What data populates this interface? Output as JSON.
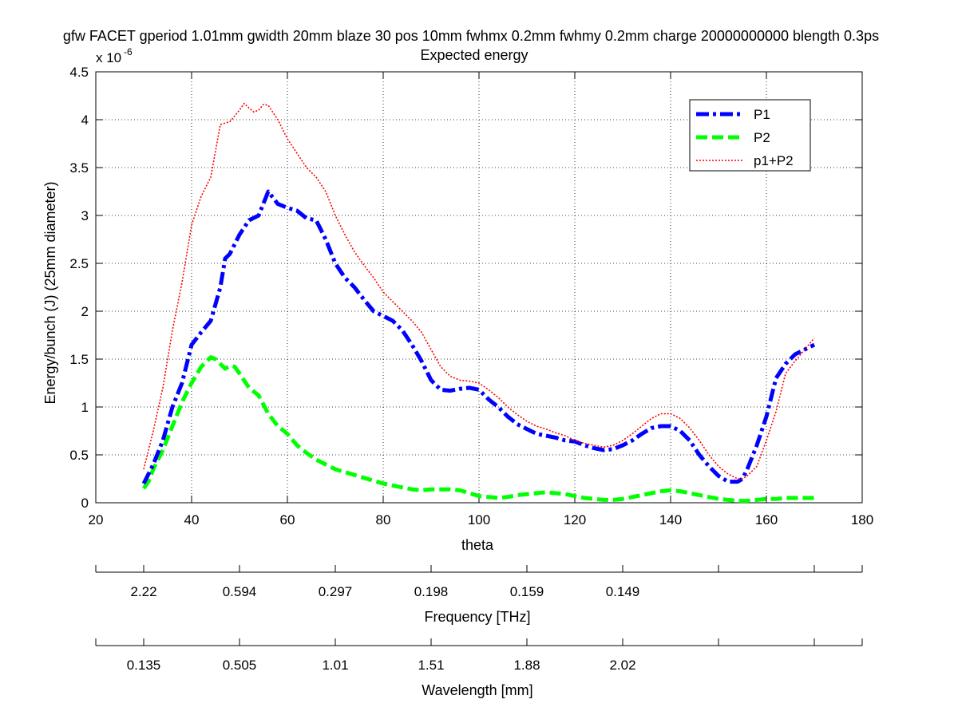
{
  "chart_data": {
    "type": "line",
    "title": "gfw FACET gperiod 1.01mm gwidth 20mm blaze 30 pos 10mm fwhmx 0.2mm fwhmy 0.2mm charge 20000000000 blength 0.3ps",
    "subtitle": "Expected energy",
    "xlabel": "theta",
    "ylabel": "Energy/bunch (J) (25mm diameter)",
    "y_exponent_base": "x 10",
    "y_exponent_power": "-6",
    "xlim": [
      20,
      180
    ],
    "ylim": [
      0,
      4.5
    ],
    "x_ticks": [
      "20",
      "40",
      "60",
      "80",
      "100",
      "120",
      "140",
      "160",
      "180"
    ],
    "y_ticks": [
      "0",
      "0.5",
      "1",
      "1.5",
      "2",
      "2.5",
      "3",
      "3.5",
      "4",
      "4.5"
    ],
    "grid": true,
    "legend_position": "top-right",
    "colors": {
      "P1": "#0000ff",
      "P2": "#00ff00",
      "p1+P2": "#ff0000"
    },
    "series": [
      {
        "name": "P1",
        "style": "dash-dot",
        "x": [
          30,
          32,
          34,
          36,
          38,
          40,
          42,
          44,
          46,
          47,
          48,
          50,
          52,
          54,
          56,
          58,
          60,
          62,
          64,
          66,
          68,
          70,
          72,
          74,
          76,
          78,
          80,
          82,
          84,
          86,
          88,
          90,
          92,
          94,
          96,
          98,
          100,
          102,
          104,
          106,
          108,
          110,
          112,
          114,
          116,
          118,
          120,
          122,
          124,
          126,
          128,
          130,
          132,
          134,
          136,
          138,
          140,
          142,
          144,
          146,
          148,
          150,
          152,
          154,
          155,
          156,
          158,
          160,
          162,
          164,
          166,
          168,
          170
        ],
        "values": [
          0.2,
          0.4,
          0.65,
          1.0,
          1.25,
          1.65,
          1.78,
          1.9,
          2.25,
          2.55,
          2.6,
          2.8,
          2.95,
          3.0,
          3.25,
          3.12,
          3.08,
          3.05,
          2.97,
          2.95,
          2.75,
          2.5,
          2.35,
          2.25,
          2.12,
          2.0,
          1.95,
          1.9,
          1.8,
          1.65,
          1.48,
          1.28,
          1.18,
          1.17,
          1.19,
          1.2,
          1.18,
          1.08,
          1.0,
          0.9,
          0.82,
          0.77,
          0.72,
          0.7,
          0.68,
          0.65,
          0.64,
          0.6,
          0.57,
          0.55,
          0.56,
          0.6,
          0.65,
          0.72,
          0.78,
          0.8,
          0.8,
          0.75,
          0.65,
          0.5,
          0.38,
          0.28,
          0.22,
          0.22,
          0.25,
          0.35,
          0.6,
          0.9,
          1.3,
          1.45,
          1.55,
          1.6,
          1.65
        ]
      },
      {
        "name": "P2",
        "style": "dashed",
        "x": [
          30,
          31,
          32,
          34,
          36,
          38,
          40,
          42,
          44,
          45,
          46,
          47,
          48,
          49,
          50,
          52,
          54,
          56,
          58,
          60,
          62,
          64,
          66,
          68,
          70,
          72,
          74,
          76,
          78,
          80,
          82,
          84,
          86,
          88,
          90,
          92,
          94,
          96,
          98,
          100,
          102,
          104,
          106,
          108,
          110,
          112,
          114,
          116,
          118,
          120,
          122,
          124,
          126,
          128,
          130,
          132,
          134,
          136,
          138,
          140,
          142,
          144,
          146,
          148,
          150,
          152,
          154,
          156,
          158,
          160,
          162,
          164,
          166,
          168,
          170
        ],
        "values": [
          0.15,
          0.22,
          0.35,
          0.55,
          0.8,
          1.05,
          1.25,
          1.42,
          1.52,
          1.5,
          1.45,
          1.4,
          1.43,
          1.42,
          1.35,
          1.2,
          1.12,
          0.93,
          0.8,
          0.72,
          0.6,
          0.52,
          0.45,
          0.4,
          0.35,
          0.32,
          0.29,
          0.26,
          0.23,
          0.2,
          0.18,
          0.16,
          0.14,
          0.13,
          0.14,
          0.14,
          0.14,
          0.13,
          0.1,
          0.07,
          0.06,
          0.05,
          0.06,
          0.08,
          0.09,
          0.1,
          0.11,
          0.1,
          0.09,
          0.07,
          0.05,
          0.04,
          0.03,
          0.03,
          0.04,
          0.06,
          0.08,
          0.1,
          0.12,
          0.13,
          0.12,
          0.1,
          0.08,
          0.06,
          0.04,
          0.03,
          0.02,
          0.02,
          0.03,
          0.04,
          0.04,
          0.05,
          0.05,
          0.05,
          0.05
        ]
      },
      {
        "name": "p1+P2",
        "style": "dotted",
        "x": [
          30,
          32,
          34,
          36,
          38,
          40,
          42,
          44,
          46,
          48,
          50,
          51,
          52,
          53,
          54,
          55,
          56,
          58,
          60,
          62,
          64,
          66,
          68,
          70,
          72,
          74,
          76,
          78,
          80,
          82,
          84,
          86,
          88,
          90,
          92,
          94,
          96,
          98,
          100,
          102,
          104,
          106,
          108,
          110,
          112,
          114,
          116,
          118,
          120,
          122,
          124,
          126,
          128,
          130,
          132,
          134,
          136,
          138,
          140,
          142,
          144,
          146,
          148,
          150,
          152,
          154,
          155,
          156,
          158,
          160,
          162,
          164,
          166,
          168,
          170
        ],
        "values": [
          0.35,
          0.75,
          1.2,
          1.8,
          2.3,
          2.9,
          3.2,
          3.4,
          3.95,
          3.98,
          4.1,
          4.17,
          4.12,
          4.08,
          4.1,
          4.16,
          4.15,
          4.0,
          3.8,
          3.65,
          3.5,
          3.4,
          3.25,
          3.0,
          2.8,
          2.62,
          2.48,
          2.35,
          2.2,
          2.1,
          2.0,
          1.9,
          1.78,
          1.6,
          1.42,
          1.32,
          1.28,
          1.27,
          1.25,
          1.18,
          1.1,
          1.0,
          0.92,
          0.85,
          0.8,
          0.77,
          0.73,
          0.7,
          0.65,
          0.62,
          0.6,
          0.58,
          0.6,
          0.65,
          0.72,
          0.8,
          0.88,
          0.93,
          0.93,
          0.88,
          0.78,
          0.65,
          0.5,
          0.38,
          0.3,
          0.25,
          0.25,
          0.28,
          0.38,
          0.65,
          0.95,
          1.35,
          1.48,
          1.6,
          1.72
        ]
      }
    ],
    "secondary_axes": [
      {
        "label": "Frequency [THz]",
        "tick_at_theta": [
          30,
          50,
          70,
          90,
          110,
          130,
          150,
          170
        ],
        "tick_labels": [
          "2.22",
          "0.594",
          "0.297",
          "0.198",
          "0.159",
          "0.149"
        ],
        "label_at_theta": [
          30,
          50,
          70,
          90,
          110,
          130
        ]
      },
      {
        "label": "Wavelength [mm]",
        "tick_at_theta": [
          30,
          50,
          70,
          90,
          110,
          130,
          150,
          170
        ],
        "tick_labels": [
          "0.135",
          "0.505",
          "1.01",
          "1.51",
          "1.88",
          "2.02"
        ],
        "label_at_theta": [
          30,
          50,
          70,
          90,
          110,
          130
        ]
      }
    ]
  }
}
